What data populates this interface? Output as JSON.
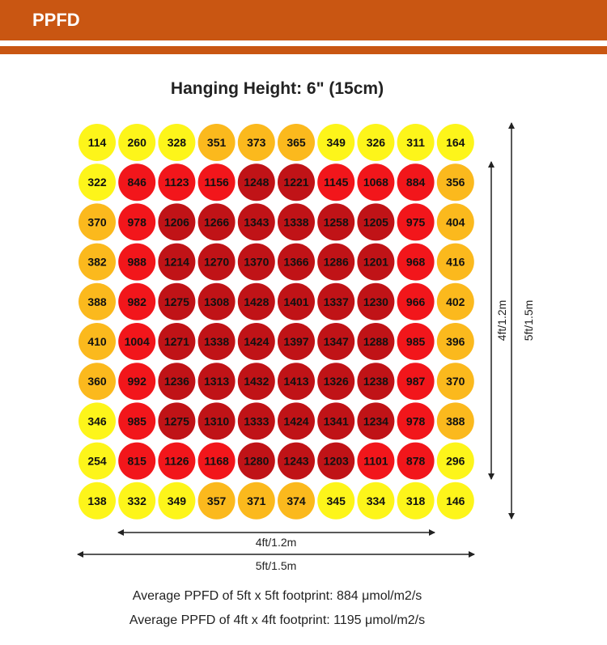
{
  "header": {
    "title": "PPFD"
  },
  "chart_data": {
    "type": "heatmap",
    "title": "Hanging Height: 6\" (15cm)",
    "rows": [
      [
        114,
        260,
        328,
        351,
        373,
        365,
        349,
        326,
        311,
        164
      ],
      [
        322,
        846,
        1123,
        1156,
        1248,
        1221,
        1145,
        1068,
        884,
        356
      ],
      [
        370,
        978,
        1206,
        1266,
        1343,
        1338,
        1258,
        1205,
        975,
        404
      ],
      [
        382,
        988,
        1214,
        1270,
        1370,
        1366,
        1286,
        1201,
        968,
        416
      ],
      [
        388,
        982,
        1275,
        1308,
        1428,
        1401,
        1337,
        1230,
        966,
        402
      ],
      [
        410,
        1004,
        1271,
        1338,
        1424,
        1397,
        1347,
        1288,
        985,
        396
      ],
      [
        360,
        992,
        1236,
        1313,
        1432,
        1413,
        1326,
        1238,
        987,
        370
      ],
      [
        346,
        985,
        1275,
        1310,
        1333,
        1424,
        1341,
        1234,
        978,
        388
      ],
      [
        254,
        815,
        1126,
        1168,
        1280,
        1243,
        1203,
        1101,
        878,
        296
      ],
      [
        138,
        332,
        349,
        357,
        371,
        374,
        345,
        334,
        318,
        146
      ]
    ],
    "color_scale": [
      {
        "max": 349,
        "color": "#fdf51a"
      },
      {
        "max": 800,
        "color": "#fbb91d"
      },
      {
        "max": 1199,
        "color": "#f2161b"
      },
      {
        "max": 9999,
        "color": "#c01317"
      }
    ],
    "dimensions": {
      "inner_label": "4ft/1.2m",
      "outer_label": "5ft/1.5m"
    }
  },
  "footer": {
    "line1": "Average PPFD of 5ft x 5ft footprint: 884 μmol/m2/s",
    "line2": "Average PPFD of 4ft x 4ft footprint: 1195 μmol/m2/s"
  }
}
